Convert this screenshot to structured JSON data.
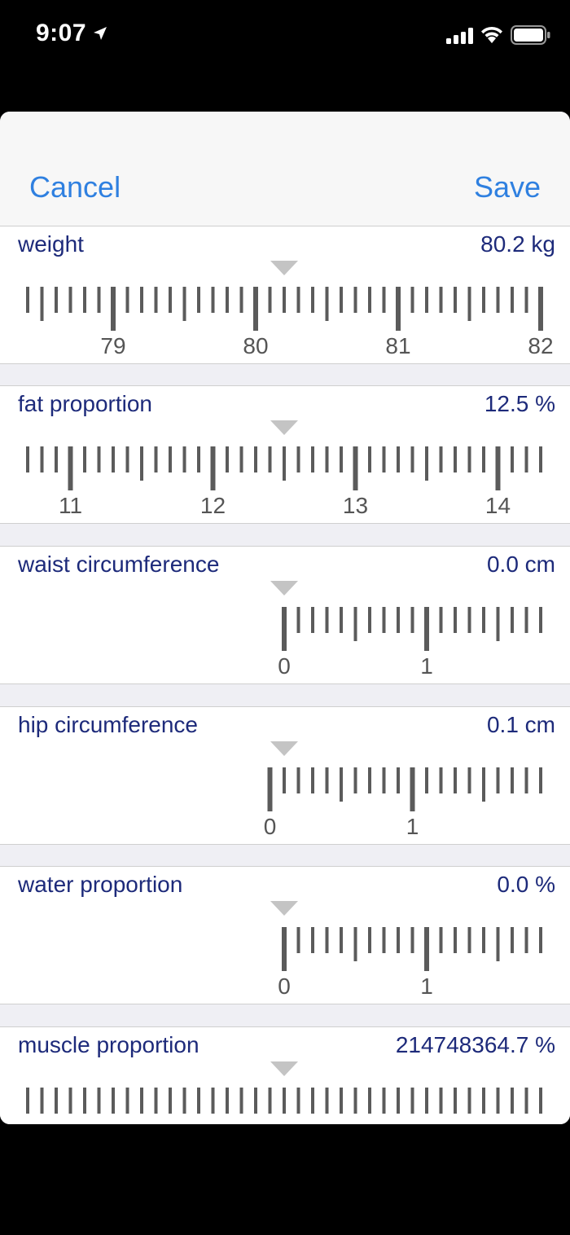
{
  "status_bar": {
    "time": "9:07"
  },
  "nav": {
    "cancel_label": "Cancel",
    "save_label": "Save"
  },
  "fields": [
    {
      "label": "weight",
      "value_text": "80.2 kg",
      "value": 80.2,
      "step": 0.1,
      "major_every": 10,
      "start": null,
      "labels_shown": true
    },
    {
      "label": "fat proportion",
      "value_text": "12.5 %",
      "value": 12.5,
      "step": 0.1,
      "major_every": 10,
      "start": null,
      "labels_shown": true
    },
    {
      "label": "waist circumference",
      "value_text": "0.0 cm",
      "value": 0.0,
      "step": 0.1,
      "major_every": 10,
      "start": 0,
      "labels_shown": true
    },
    {
      "label": "hip circumference",
      "value_text": "0.1 cm",
      "value": 0.1,
      "step": 0.1,
      "major_every": 10,
      "start": 0,
      "labels_shown": true
    },
    {
      "label": "water proportion",
      "value_text": "0.0 %",
      "value": 0.0,
      "step": 0.1,
      "major_every": 10,
      "start": 0,
      "labels_shown": true
    },
    {
      "label": "muscle proportion",
      "value_text": "214748364.7 %",
      "value": 214748364.7,
      "step": 0.1,
      "major_every": 0,
      "start": null,
      "labels_shown": false
    }
  ],
  "colors": {
    "accent": "#2f80e0",
    "label": "#1d2a7a",
    "tick": "#5b5b5b",
    "pointer": "#c4c4c4",
    "tick_label": "#555555"
  }
}
